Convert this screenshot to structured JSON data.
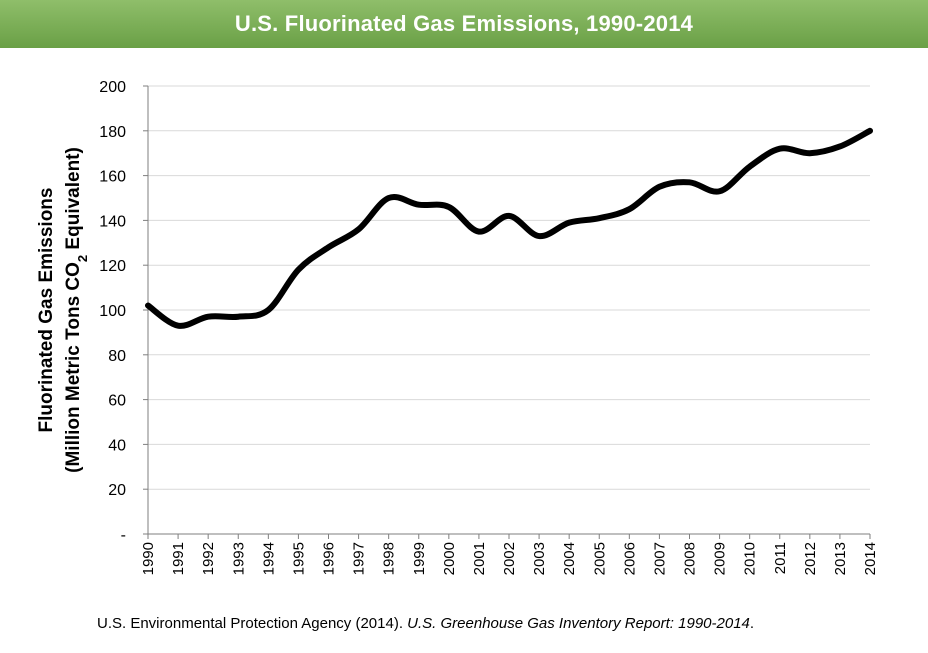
{
  "title": "U.S. Fluorinated Gas Emissions, 1990-2014",
  "source": {
    "prefix": "U.S. Environmental Protection Agency (2014). ",
    "italic": "U.S. Greenhouse Gas Inventory Report: 1990-2014",
    "suffix": "."
  },
  "colors": {
    "title_bar": "#7bb257",
    "line": "#000000",
    "grid": "#d9d9d9"
  },
  "chart_data": {
    "type": "line",
    "ylabel_line1": "Fluorinated Gas Emissions",
    "ylabel_line2_prefix": "(Million Metric Tons CO",
    "ylabel_line2_sub": "2",
    "ylabel_line2_suffix": " Equivalent)",
    "ylim": [
      0,
      200
    ],
    "y_tick_values": [
      0,
      20,
      40,
      60,
      80,
      100,
      120,
      140,
      160,
      180,
      200
    ],
    "y_tick_labels": [
      "-",
      "20",
      "40",
      "60",
      "80",
      "100",
      "120",
      "140",
      "160",
      "180",
      "200"
    ],
    "grid": true,
    "x": [
      "1990",
      "1991",
      "1992",
      "1993",
      "1994",
      "1995",
      "1996",
      "1997",
      "1998",
      "1999",
      "2000",
      "2001",
      "2002",
      "2003",
      "2004",
      "2005",
      "2006",
      "2007",
      "2008",
      "2009",
      "2010",
      "2011",
      "2012",
      "2013",
      "2014"
    ],
    "series": [
      {
        "values": [
          102,
          93,
          97,
          97,
          100,
          118,
          128,
          136,
          150,
          147,
          146,
          135,
          142,
          133,
          139,
          141,
          145,
          155,
          157,
          153,
          164,
          172,
          170,
          173,
          180
        ]
      }
    ]
  }
}
